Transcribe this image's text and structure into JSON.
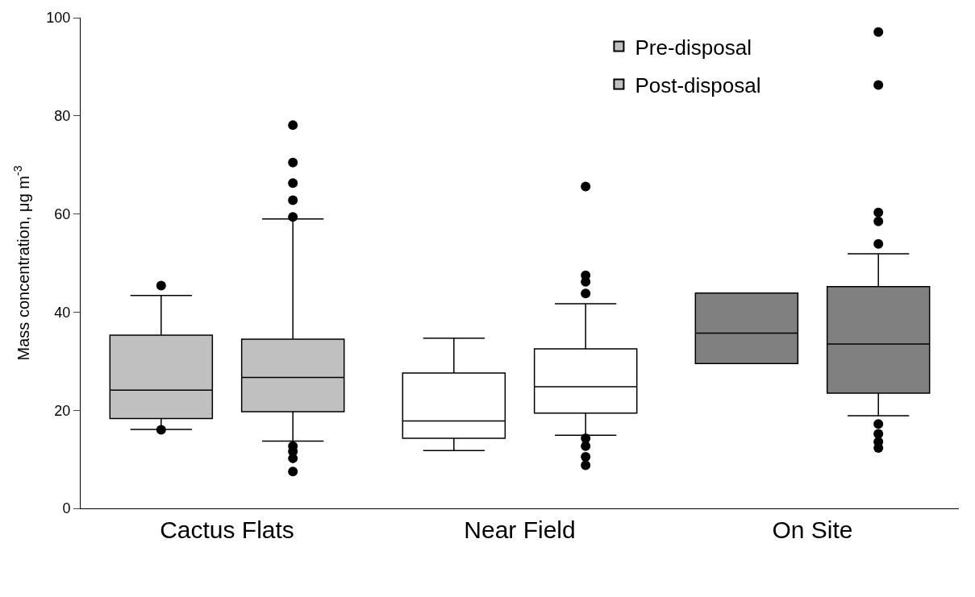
{
  "chart_data": {
    "type": "box",
    "ylabel": "Mass concentration, μg m$^{-3}$",
    "categories": [
      "Cactus Flats",
      "Near Field",
      "On Site"
    ],
    "series": [
      {
        "name": "Pre-disposal",
        "colors": [
          "#c0c0c0",
          "#ffffff",
          "#808080"
        ],
        "boxes": [
          {
            "low": 16.1,
            "q1": 18.3,
            "median": 24.1,
            "q3": 35.3,
            "high": 43.4,
            "outliers": [
              45.4,
              16.0
            ]
          },
          {
            "low": 11.8,
            "q1": 14.3,
            "median": 17.8,
            "q3": 27.6,
            "high": 34.7
          },
          {
            "low": 29.5,
            "q1": 29.5,
            "median": 35.7,
            "q3": 43.9,
            "high": 43.9
          }
        ]
      },
      {
        "name": "Post-disposal",
        "colors": [
          "#c0c0c0",
          "#ffffff",
          "#808080"
        ],
        "boxes": [
          {
            "low": 13.7,
            "q1": 19.7,
            "median": 26.7,
            "q3": 34.5,
            "high": 59.0,
            "outliers": [
              78.1,
              70.5,
              66.3,
              62.8,
              59.4,
              12.7,
              11.6,
              10.2,
              7.5
            ]
          },
          {
            "low": 14.9,
            "q1": 19.4,
            "median": 24.8,
            "q3": 32.5,
            "high": 41.7,
            "outliers": [
              65.6,
              47.5,
              46.2,
              43.8,
              14.3,
              12.7,
              10.5,
              8.8
            ]
          },
          {
            "low": 18.9,
            "q1": 23.5,
            "median": 33.5,
            "q3": 45.2,
            "high": 51.9,
            "outliers": [
              97.1,
              86.3,
              60.3,
              58.5,
              53.9,
              17.2,
              15.2,
              13.6,
              12.3
            ]
          }
        ]
      }
    ],
    "ylim": [
      0,
      100
    ],
    "yticks": [
      0,
      20,
      40,
      60,
      80,
      100
    ],
    "legend": "top right",
    "marker": "circle"
  }
}
